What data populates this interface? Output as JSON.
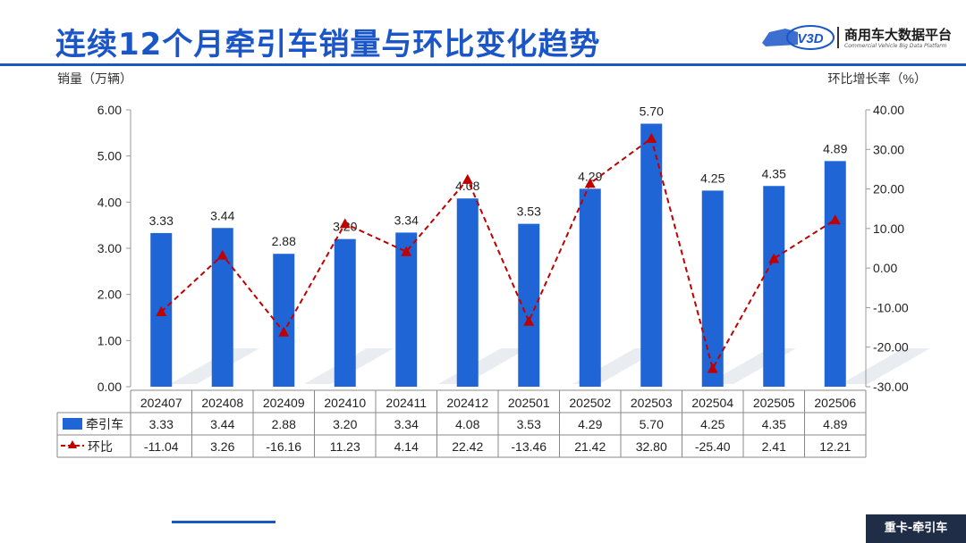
{
  "page": {
    "title": "连续12个月牵引车销量与环比变化趋势",
    "footer_tag": "重卡-牵引车"
  },
  "logo": {
    "name": "商用车大数据平台",
    "subtitle": "Commercial Vehicle Big Data Platform",
    "mark": "V3D"
  },
  "colors": {
    "bar": "#1f65d6",
    "line": "#c00000",
    "title": "#1a56c8"
  },
  "chart_data": {
    "type": "bar",
    "title": "",
    "ylabel_left": "销量（万辆）",
    "ylabel_right": "环比增长率（%）",
    "ylim_left": [
      0,
      6
    ],
    "ylim_right": [
      -30,
      40
    ],
    "yticks_left": [
      "6.00",
      "5.00",
      "4.00",
      "3.00",
      "2.00",
      "1.00",
      "0.00"
    ],
    "yticks_right": [
      "40.00",
      "30.00",
      "20.00",
      "10.00",
      "0.00",
      "-10.00",
      "-20.00",
      "-30.00"
    ],
    "categories": [
      "202407",
      "202408",
      "202409",
      "202410",
      "202411",
      "202412",
      "202501",
      "202502",
      "202503",
      "202504",
      "202505",
      "202506"
    ],
    "series": [
      {
        "name": "牵引车",
        "kind": "bar",
        "axis": "left",
        "values": [
          3.33,
          3.44,
          2.88,
          3.2,
          3.34,
          4.08,
          3.53,
          4.29,
          5.7,
          4.25,
          4.35,
          4.89
        ],
        "labels": [
          "3.33",
          "3.44",
          "2.88",
          "3.20",
          "3.34",
          "4.08",
          "3.53",
          "4.29",
          "5.70",
          "4.25",
          "4.35",
          "4.89"
        ]
      },
      {
        "name": "环比",
        "kind": "line",
        "axis": "right",
        "style": "dashed",
        "marker": "triangle",
        "values": [
          -11.04,
          3.26,
          -16.16,
          11.23,
          4.14,
          22.42,
          -13.46,
          21.42,
          32.8,
          -25.4,
          2.41,
          12.21
        ],
        "labels": [
          "-11.04",
          "3.26",
          "-16.16",
          "11.23",
          "4.14",
          "22.42",
          "-13.46",
          "21.42",
          "32.80",
          "-25.40",
          "2.41",
          "12.21"
        ]
      }
    ]
  }
}
